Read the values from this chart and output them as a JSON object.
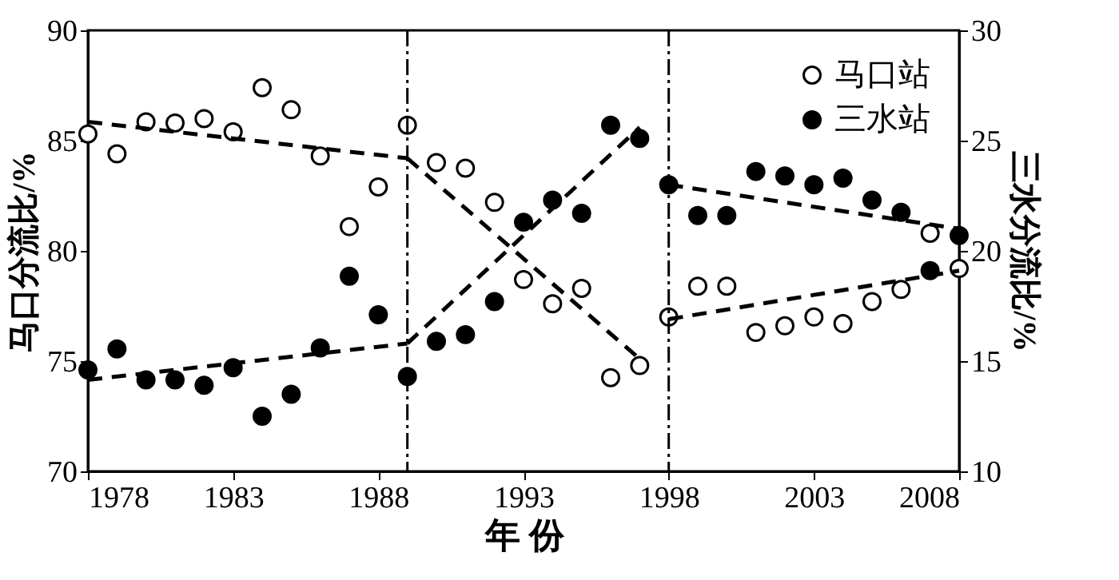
{
  "chart_data": {
    "type": "scatter",
    "xlabel": "年 份",
    "ylabel": "马口分流比/%",
    "y2label": "三水分流比/%",
    "x": [
      1978,
      1979,
      1980,
      1981,
      1982,
      1983,
      1984,
      1985,
      1986,
      1987,
      1988,
      1989,
      1990,
      1991,
      1992,
      1993,
      1994,
      1995,
      1996,
      1997,
      1998,
      1999,
      2000,
      2001,
      2002,
      2003,
      2004,
      2005,
      2006,
      2007,
      2008
    ],
    "series": [
      {
        "name": "马口站",
        "color": "#ffffff",
        "marker": "circle",
        "values": [
          85.3,
          84.4,
          85.85,
          85.8,
          86.0,
          85.4,
          87.4,
          86.4,
          84.3,
          81.1,
          82.9,
          85.7,
          84.0,
          83.75,
          82.2,
          78.7,
          77.6,
          78.3,
          74.25,
          74.8,
          77.0,
          78.4,
          78.4,
          76.3,
          76.6,
          77.0,
          76.7,
          77.7,
          78.25,
          80.8,
          79.2
        ]
      },
      {
        "name": "三水站",
        "color": "#000000",
        "axis": "y2",
        "marker": "circle",
        "values": [
          14.6,
          15.55,
          14.15,
          14.15,
          13.9,
          14.7,
          12.5,
          13.5,
          15.6,
          18.85,
          17.1,
          14.3,
          15.9,
          16.2,
          17.7,
          21.3,
          22.3,
          21.7,
          25.7,
          25.1,
          23.0,
          21.6,
          21.6,
          23.6,
          23.4,
          23.0,
          23.3,
          22.3,
          21.75,
          19.1,
          20.7
        ]
      },
      {
        "type": "line",
        "color": "#000000",
        "line_style": "dashed",
        "x": [
          1978,
          1989
        ],
        "values": [
          85.85,
          84.2
        ]
      },
      {
        "type": "line",
        "color": "#000000",
        "line_style": "dashed",
        "x": [
          1989,
          1997
        ],
        "values": [
          84.2,
          75.1
        ]
      },
      {
        "type": "line",
        "color": "#000000",
        "line_style": "dashed",
        "x": [
          1998,
          2008
        ],
        "values": [
          76.9,
          79.1
        ]
      },
      {
        "type": "line",
        "color": "#000000",
        "line_style": "dashed",
        "axis": "y2",
        "x": [
          1978,
          1989
        ],
        "values": [
          14.15,
          15.8
        ]
      },
      {
        "type": "line",
        "color": "#000000",
        "line_style": "dashed",
        "axis": "y2",
        "x": [
          1989,
          1997
        ],
        "values": [
          15.8,
          25.6
        ]
      },
      {
        "type": "line",
        "color": "#000000",
        "line_style": "dashed",
        "axis": "y2",
        "x": [
          1998,
          2008
        ],
        "values": [
          23.0,
          21.0
        ]
      }
    ],
    "ref_lines": [
      {
        "axis": "x",
        "value": 1989,
        "color": "#000000"
      },
      {
        "axis": "x",
        "value": 1998,
        "color": "#000000"
      }
    ],
    "xlim": [
      1978,
      2008
    ],
    "xticks": [
      1978,
      1983,
      1988,
      1993,
      1998,
      2003,
      2008
    ],
    "ylim": [
      70,
      90
    ],
    "yticks": [
      70,
      75,
      80,
      85,
      90
    ],
    "y2lim": [
      10,
      30
    ],
    "y2ticks": [
      10,
      15,
      20,
      25,
      30
    ],
    "grid": false,
    "legend": "top right"
  }
}
